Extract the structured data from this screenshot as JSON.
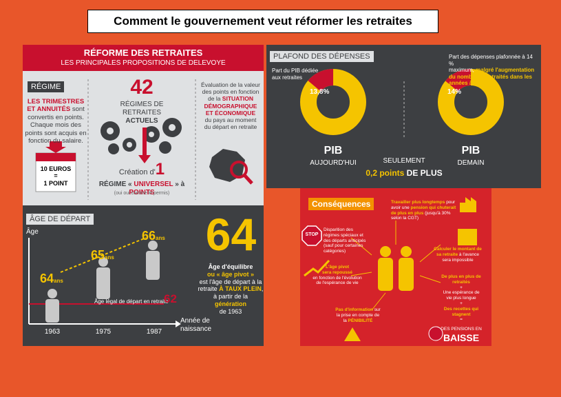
{
  "title": "Comment le gouvernement veut réformer les retraites",
  "left": {
    "header_title": "RÉFORME DES RETRAITES",
    "header_sub": "LES PRINCIPALES PROPOSITIONS DE DELEVOYE",
    "regime": {
      "label": "RÉGIME",
      "lines": [
        [
          {
            "text": "LES TRIMESTRES",
            "color": "#c8102e"
          }
        ],
        [
          {
            "text": "ET ANNUITÉS",
            "color": "#c8102e"
          },
          " sont"
        ],
        [
          "convertis en points."
        ],
        [
          "Chaque mois des"
        ],
        [
          "points sont acquis en"
        ],
        [
          "fonction du salaire."
        ]
      ],
      "card_top": "10 EUROS",
      "card_eq": "=",
      "card_bottom": "1 POINT"
    },
    "center": {
      "big": "42",
      "lines": [
        [
          "RÉGIMES DE"
        ],
        [
          "RETRAITES"
        ],
        [
          {
            "text": "ACTUELS",
            "color": "#3d3f42"
          }
        ]
      ],
      "creation": "Création d'",
      "one": "1",
      "universal": [
        [
          "RÉGIME « ",
          {
            "text": "UNIVERSEL",
            "color": "#c8102e"
          },
          " » à ",
          {
            "text": "POINTS",
            "color": "#c8102e"
          }
        ]
      ],
      "note": "(oui oui comme le permis)"
    },
    "evaluation": [
      [
        "Évaluation de la valeur"
      ],
      [
        "des points en fonction"
      ],
      [
        "de la ",
        {
          "text": "SITUATION",
          "color": "#c8102e"
        }
      ],
      [
        {
          "text": "DÉMOGRAPHIQUE",
          "color": "#c8102e"
        }
      ],
      [
        {
          "text": "ET ÉCONOMIQUE",
          "color": "#c8102e"
        }
      ],
      [
        "du pays au moment"
      ],
      [
        "du départ en retraite"
      ]
    ],
    "age": {
      "label": "ÂGE DE DÉPART",
      "axis_y": "Âge",
      "axis_x": [
        [
          "Année de"
        ],
        [
          "naissance"
        ]
      ],
      "points": [
        {
          "age": "64",
          "unit": "ans",
          "year": "1963"
        },
        {
          "age": "65",
          "unit": "ans",
          "year": "1975"
        },
        {
          "age": "66",
          "unit": "ans",
          "year": "1987"
        }
      ],
      "legal_text": "Âge légal de départ en retraite",
      "legal_age": "62",
      "big": "64",
      "lines": [
        [
          {
            "text": "Âge d'équilibre",
            "color": "#fff"
          }
        ],
        [
          {
            "text": "ou « âge pivot »",
            "color": "#f5c400"
          }
        ],
        [
          "est l'âge de départ à la"
        ],
        [
          "retraite ",
          {
            "text": "À TAUX PLEIN",
            "color": "#f5c400"
          },
          ","
        ],
        [
          "à partir de la ",
          {
            "text": "génération",
            "color": "#f5c400"
          }
        ],
        [
          "de 1963"
        ]
      ]
    }
  },
  "plafond": {
    "label": "PLAFOND DES DÉPENSES",
    "left_note": [
      [
        "Part du PIB dédiée"
      ],
      [
        "aux retraites"
      ]
    ],
    "today": {
      "value": 13.8,
      "label": "13,8%",
      "name": "PIB",
      "sub": "AUJOURD'HUI"
    },
    "mid": "SEULEMENT",
    "mid_value": [
      [
        {
          "text": "0,2 points",
          "color": "#f5c400"
        },
        " DE PLUS"
      ]
    ],
    "right_note": [
      [
        "Part des dépenses plafonnée à 14 %"
      ],
      [
        "maximum, ",
        {
          "text": "malgré l'augmentation",
          "color": "#f5c400"
        }
      ],
      [
        {
          "text": "du nombre de retraités dans les",
          "color": "#f5c400"
        }
      ],
      [
        {
          "text": "années à venir",
          "color": "#f5c400"
        }
      ]
    ],
    "tomorrow": {
      "value": 14,
      "label": "14%",
      "name": "PIB",
      "sub": "DEMAIN"
    }
  },
  "consequences": {
    "title": "Conséquences",
    "work": [
      [
        {
          "text": "Travailler plus longtemps",
          "color": "#f5c400"
        },
        " pour"
      ],
      [
        "avoir une ",
        {
          "text": "pension qui chuterait",
          "color": "#f5c400"
        }
      ],
      [
        {
          "text": "de plus en plus",
          "color": "#f5c400"
        },
        " (jusqu'à 30%"
      ],
      [
        "selon la CGT)"
      ]
    ],
    "stop": "STOP",
    "special": [
      [
        "Disparition des"
      ],
      [
        "régimes spéciaux et"
      ],
      [
        "des départs anticipés"
      ],
      [
        "(sauf pour certaines"
      ],
      [
        "catégories)"
      ]
    ],
    "calc": [
      [
        {
          "text": "Calculer le montant de",
          "color": "#f5c400"
        }
      ],
      [
        {
          "text": "sa retraite",
          "color": "#f5c400"
        },
        " à l'avance"
      ],
      [
        "sera impossible"
      ]
    ],
    "pivot": [
      [
        {
          "text": "L'âge pivot",
          "color": "#f5c400"
        }
      ],
      [
        {
          "text": "sera repoussé",
          "color": "#f5c400"
        }
      ],
      [
        "en fonction de l'évolution"
      ],
      [
        "de l'espérance de vie"
      ]
    ],
    "equation": [
      [
        {
          "text": "De plus en plus de",
          "color": "#f5c400"
        }
      ],
      [
        {
          "text": "retraités",
          "color": "#f5c400"
        }
      ],
      [
        "+"
      ],
      [
        "Une espérance de"
      ],
      [
        "vie plus longue"
      ],
      [
        "+"
      ],
      [
        {
          "text": "Des recettes qui",
          "color": "#f5c400"
        }
      ],
      [
        {
          "text": "stagnent",
          "color": "#f5c400"
        }
      ],
      [
        "="
      ]
    ],
    "pension": "DES PENSIONS EN",
    "drop": "BAISSE",
    "penibility": [
      [
        {
          "text": "Pas d'information",
          "color": "#f5c400"
        },
        " sur"
      ],
      [
        "la prise en compte de"
      ],
      [
        "la ",
        {
          "text": "PÉNIBILITÉ",
          "color": "#f5c400"
        }
      ]
    ]
  }
}
